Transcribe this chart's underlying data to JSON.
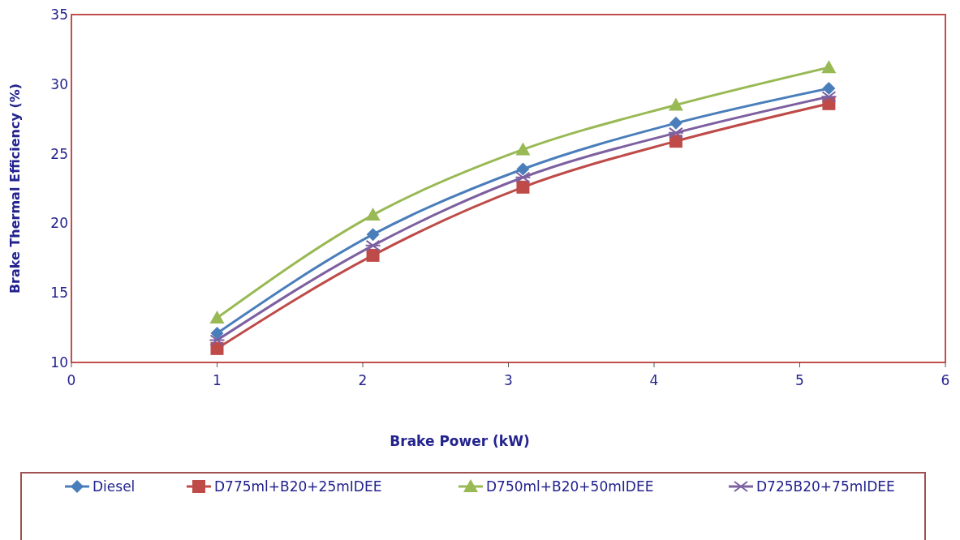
{
  "chart_data": {
    "type": "line",
    "xlabel": "Brake Power (kW)",
    "ylabel": "Brake Thermal Efficiency (%)",
    "x": [
      1.0,
      2.07,
      3.1,
      4.15,
      5.2
    ],
    "series": [
      {
        "name": "Diesel",
        "color": "#4a7ebb",
        "marker": "diamond",
        "values": [
          12.1,
          19.2,
          23.9,
          27.2,
          29.7
        ]
      },
      {
        "name": "D775ml+B20+25mIDEE",
        "color": "#be4b48",
        "marker": "square",
        "values": [
          11.0,
          17.7,
          22.6,
          25.9,
          28.6
        ]
      },
      {
        "name": "D750ml+B20+50mIDEE",
        "color": "#98b954",
        "marker": "triangle",
        "values": [
          13.2,
          20.6,
          25.3,
          28.5,
          31.2
        ]
      },
      {
        "name": "D725B20+75mIDEE",
        "color": "#7d60a0",
        "marker": "cross",
        "values": [
          11.6,
          18.4,
          23.3,
          26.5,
          29.1
        ]
      }
    ],
    "xlim": [
      0,
      6
    ],
    "xticks": [
      0,
      1,
      2,
      3,
      4,
      5,
      6
    ],
    "ylim": [
      10,
      35
    ],
    "yticks": [
      10,
      15,
      20,
      25,
      30,
      35
    ],
    "grid": false,
    "legend": "bottom"
  }
}
